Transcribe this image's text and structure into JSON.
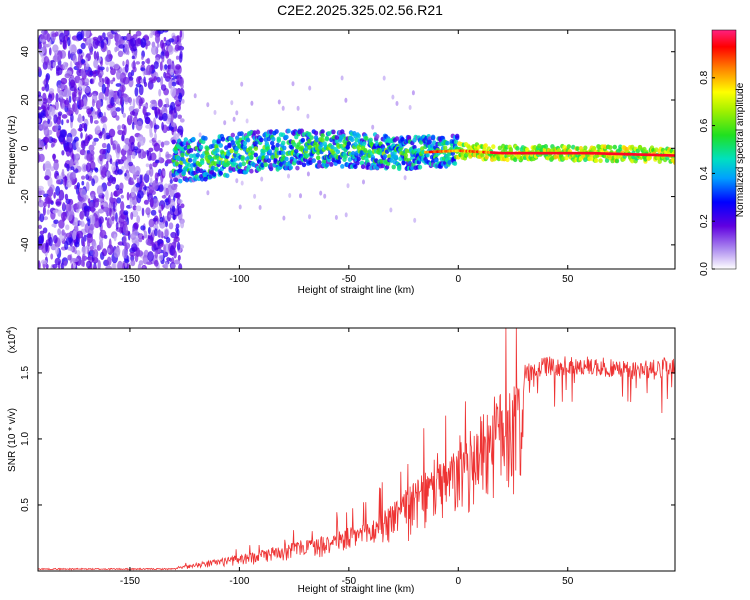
{
  "title": "C2E2.2025.325.02.56.R21",
  "chart_data": [
    {
      "type": "heatmap",
      "name": "spectrogram",
      "xlabel": "Height of straight line (km)",
      "ylabel": "Frequency (Hz)",
      "xlim": [
        -192,
        99
      ],
      "ylim": [
        -50,
        49
      ],
      "xticks": [
        -150,
        -100,
        -50,
        0,
        50
      ],
      "yticks": [
        -40,
        -20,
        0,
        20,
        40
      ],
      "noise_region": {
        "x": [
          -192,
          -126
        ],
        "y": [
          -50,
          49
        ],
        "level": 0.2
      },
      "signal_band": {
        "x": [
          -130,
          99
        ],
        "center_freq": [
          -6,
          -1,
          0,
          -2,
          -1,
          -2,
          -2,
          -3
        ],
        "center_x": [
          -130,
          -90,
          -60,
          -25,
          0,
          20,
          60,
          99
        ],
        "peak_amplitude": 1.0
      },
      "colorbar": {
        "label": "Normalized spectral amplitude",
        "range": [
          0.0,
          1.0
        ],
        "ticks": [
          "0.0",
          "0.2",
          "0.4",
          "0.6",
          "0.8"
        ],
        "tick_values": [
          0.0,
          0.2,
          0.4,
          0.6,
          0.8
        ]
      }
    },
    {
      "type": "line",
      "name": "snr",
      "xlabel": "Height of straight line (km)",
      "ylabel": "SNR (10 * v/v)",
      "yscale_label": "(x10",
      "yscale_exp": "4",
      "yscale_close": ")",
      "xlim": [
        -192,
        99
      ],
      "ylim": [
        0,
        1.84
      ],
      "xticks": [
        -150,
        -100,
        -50,
        0,
        50
      ],
      "yticks": [
        0.5,
        1.0,
        1.5
      ],
      "ytick_labels": [
        "0.5",
        "1.0",
        "1.5"
      ],
      "color": "#ee3333",
      "envelope_x": [
        -192,
        -130,
        -120,
        -100,
        -80,
        -60,
        -40,
        -25,
        -15,
        -5,
        5,
        15,
        25,
        40,
        60,
        80,
        99
      ],
      "envelope_y": [
        0.01,
        0.02,
        0.06,
        0.12,
        0.2,
        0.28,
        0.38,
        0.6,
        0.75,
        0.85,
        1.05,
        1.3,
        1.45,
        1.55,
        1.55,
        1.52,
        1.55
      ]
    }
  ]
}
